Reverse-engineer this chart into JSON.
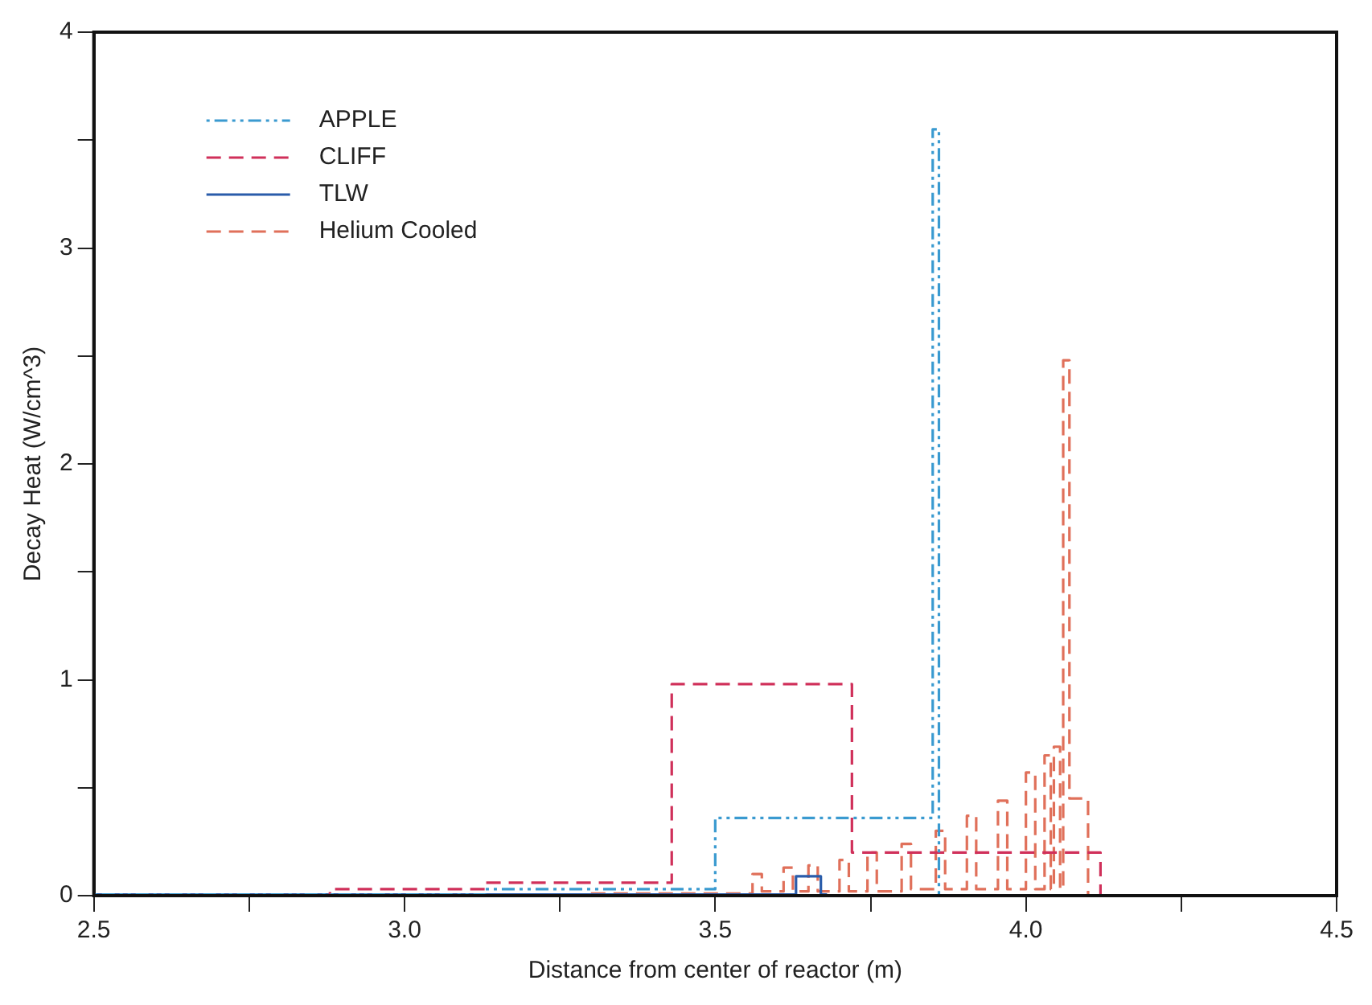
{
  "chart_data": {
    "type": "step",
    "xlabel": "Distance from center of reactor (m)",
    "ylabel": "Decay Heat (W/cm^3)",
    "xlim": [
      2.5,
      4.5
    ],
    "ylim": [
      0,
      4
    ],
    "xticks": [
      2.5,
      {
        "value": 2.75,
        "label": null
      },
      {
        "value": 3,
        "label": "3.0"
      },
      {
        "value": 3.25,
        "label": null
      },
      3.5,
      {
        "value": 3.75,
        "label": null
      },
      {
        "value": 4,
        "label": "4.0"
      },
      {
        "value": 4.25,
        "label": null
      },
      4.5
    ],
    "yticks": [
      0,
      {
        "value": 0.5,
        "label": null
      },
      1,
      {
        "value": 1.5,
        "label": null
      },
      2,
      {
        "value": 2.5,
        "label": null
      },
      3,
      {
        "value": 3.5,
        "label": null
      },
      4
    ],
    "grid": false,
    "legend": "top left",
    "marker": "none",
    "series": [
      {
        "name": "APPLE",
        "color": "#3a9ad0",
        "line_style": "dotted",
        "x": [
          2.5,
          3.13,
          3.5,
          3.85,
          3.86
        ],
        "values": [
          0.005,
          0.03,
          0.36,
          3.55,
          0
        ]
      },
      {
        "name": "CLIFF",
        "color": "#d0305a",
        "line_style": "dashed",
        "x": [
          2.5,
          2.88,
          3.13,
          3.43,
          3.72,
          4.12
        ],
        "values": [
          0,
          0.03,
          0.06,
          0.98,
          0.2,
          0
        ]
      },
      {
        "name": "TLW",
        "color": "#2a5caa",
        "line_style": "solid",
        "x": [
          2.5,
          3.63,
          3.67,
          3.68
        ],
        "values": [
          0.005,
          0.09,
          0.005,
          0.005
        ]
      },
      {
        "name": "Helium Cooled",
        "color": "#e0705a",
        "line_style": "dashed",
        "x": [
          3.3,
          3.56,
          3.575,
          3.61,
          3.625,
          3.65,
          3.665,
          3.7,
          3.715,
          3.745,
          3.76,
          3.8,
          3.815,
          3.855,
          3.87,
          3.905,
          3.92,
          3.955,
          3.97,
          4.0,
          4.015,
          4.03,
          4.04,
          4.045,
          4.055,
          4.06,
          4.07,
          4.1
        ],
        "values": [
          0.01,
          0.1,
          0.02,
          0.13,
          0.02,
          0.14,
          0.02,
          0.165,
          0.02,
          0.2,
          0.02,
          0.24,
          0.03,
          0.3,
          0.03,
          0.37,
          0.03,
          0.44,
          0.03,
          0.57,
          0.03,
          0.65,
          0.03,
          0.69,
          0.03,
          2.48,
          0.45,
          0
        ]
      }
    ]
  }
}
